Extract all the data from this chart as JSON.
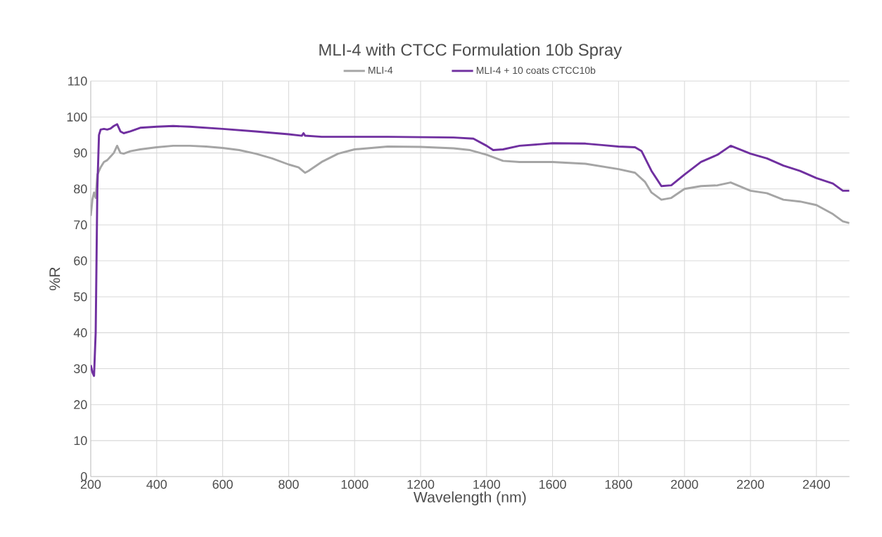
{
  "chart_data": {
    "type": "line",
    "title": "MLI-4 with CTCC Formulation 10b Spray",
    "xlabel": "Wavelength (nm)",
    "ylabel": "%R",
    "xlim": [
      200,
      2500
    ],
    "ylim": [
      0,
      110
    ],
    "xticks": [
      200,
      400,
      600,
      800,
      1000,
      1200,
      1400,
      1600,
      1800,
      2000,
      2200,
      2400
    ],
    "yticks": [
      0,
      10,
      20,
      30,
      40,
      50,
      60,
      70,
      80,
      90,
      100,
      110
    ],
    "grid": true,
    "legend": "top",
    "marker": "none",
    "line_style": "solid",
    "series": [
      {
        "name": "MLI-4",
        "color": "#a5a5a5",
        "x": [
          200,
          205,
          210,
          215,
          220,
          230,
          240,
          250,
          260,
          270,
          280,
          290,
          300,
          320,
          350,
          400,
          450,
          500,
          550,
          600,
          650,
          700,
          750,
          800,
          830,
          850,
          860,
          900,
          950,
          1000,
          1100,
          1200,
          1300,
          1350,
          1400,
          1450,
          1500,
          1600,
          1700,
          1800,
          1850,
          1880,
          1900,
          1930,
          1960,
          2000,
          2050,
          2100,
          2140,
          2200,
          2250,
          2300,
          2350,
          2400,
          2450,
          2480,
          2500
        ],
        "values": [
          72.5,
          77,
          79,
          77.5,
          84,
          86,
          87.5,
          88,
          89,
          90,
          92,
          90,
          89.8,
          90.5,
          91,
          91.6,
          92,
          92,
          91.8,
          91.4,
          90.8,
          89.8,
          88.5,
          86.8,
          86,
          84.5,
          85,
          87.5,
          89.8,
          91,
          91.8,
          91.7,
          91.3,
          90.8,
          89.5,
          87.8,
          87.5,
          87.5,
          87,
          85.5,
          84.5,
          82,
          79,
          77,
          77.5,
          80,
          80.8,
          81,
          81.8,
          79.5,
          78.8,
          77,
          76.5,
          75.5,
          73,
          71,
          70.5
        ]
      },
      {
        "name": "MLI-4 + 10 coats CTCC10b",
        "color": "#7030a0",
        "x": [
          200,
          205,
          210,
          215,
          220,
          225,
          230,
          240,
          250,
          260,
          270,
          280,
          290,
          300,
          320,
          350,
          400,
          450,
          500,
          600,
          700,
          800,
          840,
          845,
          850,
          900,
          1000,
          1100,
          1200,
          1300,
          1360,
          1400,
          1420,
          1450,
          1500,
          1600,
          1700,
          1750,
          1800,
          1850,
          1870,
          1900,
          1930,
          1960,
          2000,
          2050,
          2100,
          2140,
          2200,
          2250,
          2300,
          2350,
          2400,
          2450,
          2480,
          2500
        ],
        "values": [
          31,
          29,
          28,
          40,
          80,
          95,
          96.5,
          96.7,
          96.5,
          96.8,
          97.5,
          98,
          96,
          95.5,
          96,
          97,
          97.3,
          97.5,
          97.3,
          96.7,
          96,
          95.2,
          94.8,
          95.5,
          94.8,
          94.5,
          94.5,
          94.5,
          94.4,
          94.3,
          94,
          92,
          90.8,
          91,
          92,
          92.7,
          92.6,
          92.2,
          91.8,
          91.6,
          90.5,
          85,
          80.8,
          81,
          84,
          87.5,
          89.5,
          92,
          89.8,
          88.5,
          86.5,
          85,
          83,
          81.5,
          79.5,
          79.5
        ]
      }
    ]
  }
}
